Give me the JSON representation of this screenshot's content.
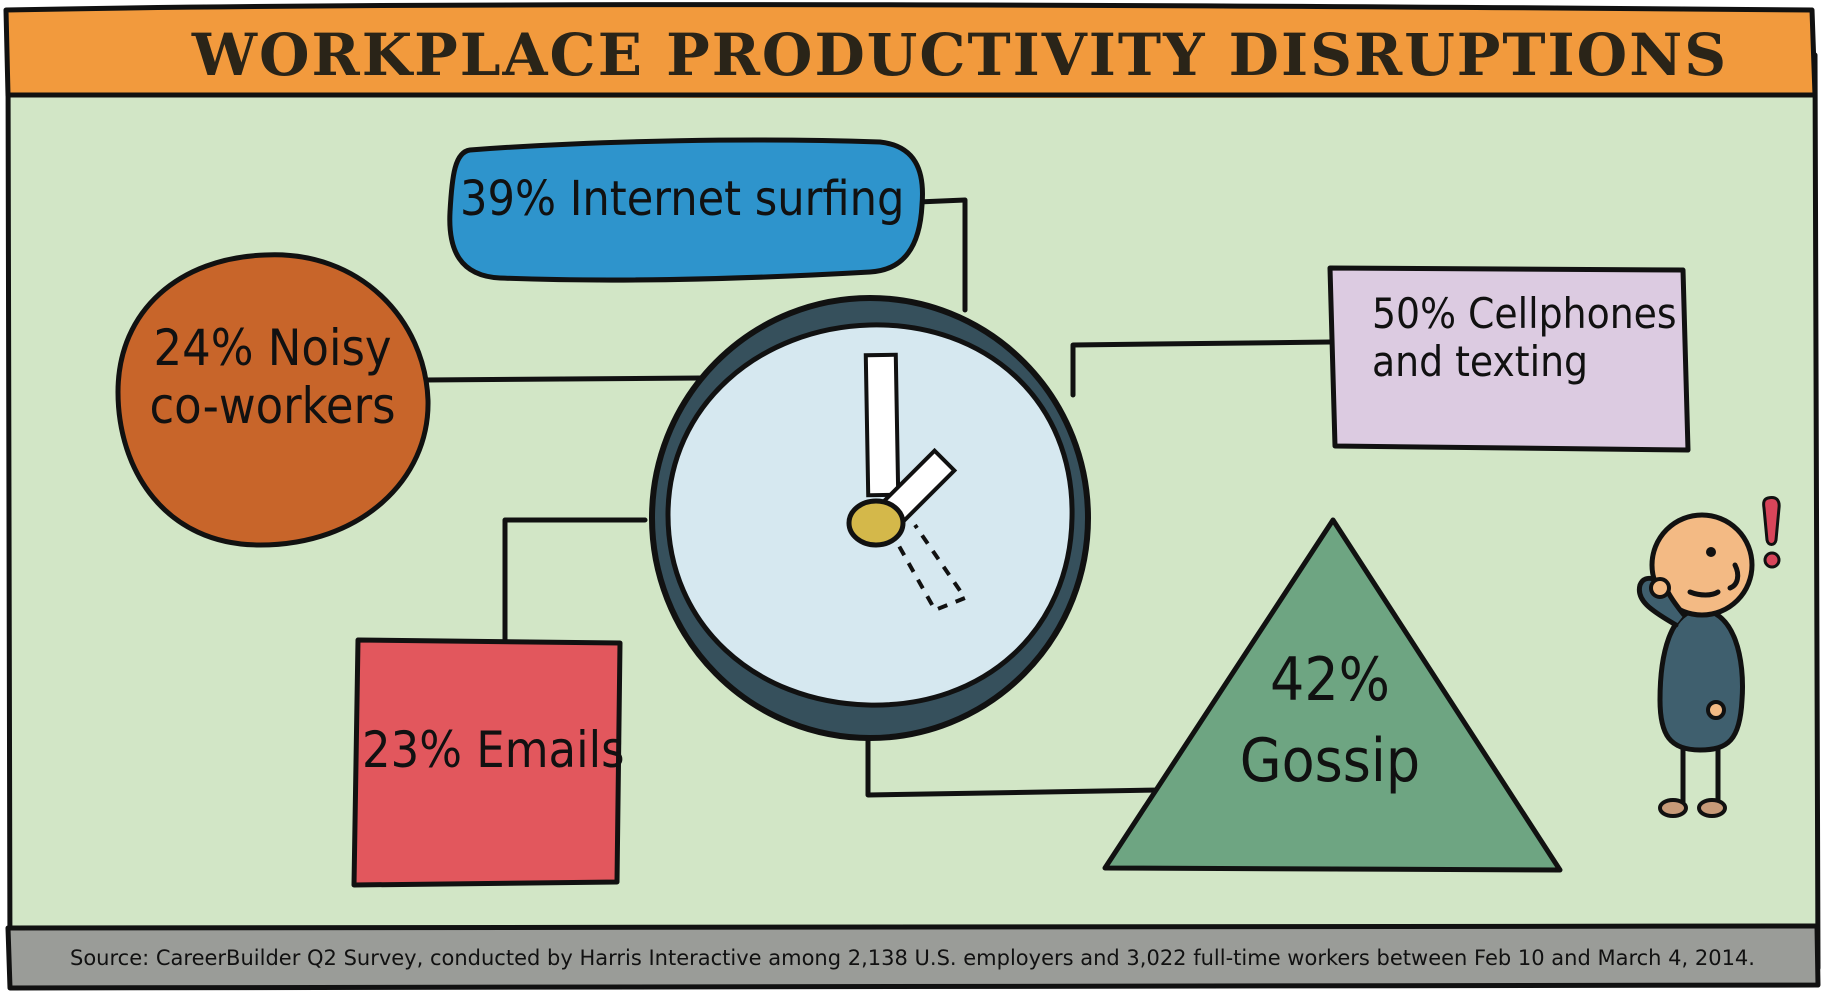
{
  "title": "WORKPLACE PRODUCTIVITY DISRUPTIONS",
  "items": {
    "internet": {
      "percent": "39%",
      "label": "Internet surfing",
      "color": "#2e94cc"
    },
    "noisy": {
      "percent": "24%",
      "label_line1": "Noisy",
      "label_line2": "co-workers",
      "color": "#c8652a"
    },
    "cellphones": {
      "percent": "50%",
      "label_line1": "Cellphones",
      "label_line2": "and texting",
      "color": "#dccbe1"
    },
    "emails": {
      "percent": "23%",
      "label": "Emails",
      "color": "#e2575d"
    },
    "gossip": {
      "percent": "42%",
      "label": "Gossip",
      "color": "#6ea582"
    }
  },
  "source": "Source: CareerBuilder Q2 Survey, conducted by Harris Interactive among 2,138 U.S. employers and 3,022 full-time workers between Feb 10 and March 4, 2014.",
  "colors": {
    "title_bar": "#f29a3d",
    "background": "#d2e6c6",
    "footer": "#9a9c98",
    "clock_rim": "#36505c",
    "clock_face": "#d6e8f0",
    "clock_hub": "#d4b84a",
    "figure_body": "#3f5f6e",
    "figure_skin": "#f3ba84",
    "exclamation": "#d8455a"
  },
  "icons": [
    "wall-clock-icon",
    "thinking-person-icon",
    "exclamation-icon"
  ]
}
